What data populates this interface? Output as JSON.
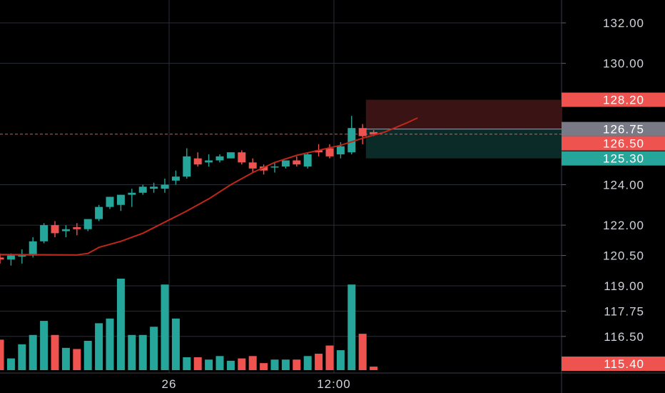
{
  "chart_data": {
    "type": "candlestick",
    "title": "",
    "xlabel": "",
    "ylabel": "",
    "ylim": [
      114.7,
      133.0
    ],
    "grid": true,
    "colors": {
      "background": "#000000",
      "up": "#26a69a",
      "down": "#ef5350",
      "moving_average": "#c0261a",
      "grid": "#2a2e39",
      "axis_text": "#d1d4dc",
      "current_price_badge": "#787b86",
      "stop_zone": "#3a1414",
      "target_zone": "#0b2b28"
    },
    "price_ticks": [
      "132.00",
      "130.00",
      "124.00",
      "122.00",
      "120.50",
      "119.00",
      "117.75",
      "116.50"
    ],
    "time_ticks": [
      {
        "label": "26",
        "index": 15
      },
      {
        "label": "12:00",
        "index": 30
      }
    ],
    "candles": [
      {
        "o": 120.4,
        "h": 120.6,
        "l": 120.1,
        "c": 120.3
      },
      {
        "o": 120.3,
        "h": 120.6,
        "l": 120.0,
        "c": 120.5
      },
      {
        "o": 120.5,
        "h": 120.8,
        "l": 120.1,
        "c": 120.5
      },
      {
        "o": 120.5,
        "h": 121.4,
        "l": 120.4,
        "c": 121.2
      },
      {
        "o": 121.2,
        "h": 122.1,
        "l": 121.1,
        "c": 122.0
      },
      {
        "o": 122.0,
        "h": 122.2,
        "l": 121.4,
        "c": 121.6
      },
      {
        "o": 121.7,
        "h": 122.0,
        "l": 121.4,
        "c": 121.8
      },
      {
        "o": 121.9,
        "h": 122.1,
        "l": 121.5,
        "c": 121.8
      },
      {
        "o": 121.8,
        "h": 122.3,
        "l": 121.7,
        "c": 122.3
      },
      {
        "o": 122.3,
        "h": 123.0,
        "l": 122.2,
        "c": 122.9
      },
      {
        "o": 122.9,
        "h": 123.4,
        "l": 122.8,
        "c": 123.4
      },
      {
        "o": 123.0,
        "h": 123.5,
        "l": 122.7,
        "c": 123.5
      },
      {
        "o": 123.5,
        "h": 123.8,
        "l": 122.9,
        "c": 123.6
      },
      {
        "o": 123.6,
        "h": 124.0,
        "l": 123.5,
        "c": 123.9
      },
      {
        "o": 123.8,
        "h": 124.1,
        "l": 123.6,
        "c": 123.9
      },
      {
        "o": 123.8,
        "h": 124.3,
        "l": 123.6,
        "c": 124.0
      },
      {
        "o": 124.2,
        "h": 124.7,
        "l": 124.0,
        "c": 124.4
      },
      {
        "o": 124.4,
        "h": 125.8,
        "l": 124.3,
        "c": 125.4
      },
      {
        "o": 125.3,
        "h": 125.6,
        "l": 124.9,
        "c": 125.0
      },
      {
        "o": 125.1,
        "h": 125.5,
        "l": 124.9,
        "c": 125.2
      },
      {
        "o": 125.2,
        "h": 125.5,
        "l": 125.1,
        "c": 125.4
      },
      {
        "o": 125.3,
        "h": 125.6,
        "l": 125.3,
        "c": 125.6
      },
      {
        "o": 125.6,
        "h": 125.7,
        "l": 125.0,
        "c": 125.1
      },
      {
        "o": 125.1,
        "h": 125.3,
        "l": 124.6,
        "c": 124.8
      },
      {
        "o": 124.9,
        "h": 125.0,
        "l": 124.5,
        "c": 124.7
      },
      {
        "o": 124.9,
        "h": 125.1,
        "l": 124.6,
        "c": 124.9
      },
      {
        "o": 124.9,
        "h": 125.2,
        "l": 124.8,
        "c": 125.2
      },
      {
        "o": 125.2,
        "h": 125.4,
        "l": 124.9,
        "c": 125.0
      },
      {
        "o": 124.9,
        "h": 125.6,
        "l": 124.8,
        "c": 125.5
      },
      {
        "o": 125.7,
        "h": 126.0,
        "l": 125.4,
        "c": 125.6
      },
      {
        "o": 125.8,
        "h": 126.0,
        "l": 125.3,
        "c": 125.4
      },
      {
        "o": 125.5,
        "h": 126.1,
        "l": 125.3,
        "c": 125.9
      },
      {
        "o": 125.6,
        "h": 127.4,
        "l": 125.5,
        "c": 126.8
      },
      {
        "o": 126.8,
        "h": 127.0,
        "l": 126.0,
        "c": 126.4
      },
      {
        "o": 126.6,
        "h": 126.7,
        "l": 126.4,
        "c": 126.5
      }
    ],
    "volume": [
      0.26,
      0.1,
      0.22,
      0.3,
      0.42,
      0.3,
      0.19,
      0.18,
      0.25,
      0.4,
      0.44,
      0.78,
      0.3,
      0.3,
      0.37,
      0.73,
      0.44,
      0.11,
      0.11,
      0.09,
      0.12,
      0.08,
      0.1,
      0.12,
      0.06,
      0.09,
      0.09,
      0.09,
      0.12,
      0.14,
      0.21,
      0.17,
      0.73,
      0.31,
      0.03
    ],
    "moving_average": [
      {
        "i": -1,
        "v": 120.55
      },
      {
        "i": 3,
        "v": 120.54
      },
      {
        "i": 7,
        "v": 120.53
      },
      {
        "i": 8,
        "v": 120.6
      },
      {
        "i": 9,
        "v": 120.9
      },
      {
        "i": 11,
        "v": 121.2
      },
      {
        "i": 13,
        "v": 121.6
      },
      {
        "i": 15,
        "v": 122.15
      },
      {
        "i": 17,
        "v": 122.7
      },
      {
        "i": 19,
        "v": 123.3
      },
      {
        "i": 21,
        "v": 124.0
      },
      {
        "i": 23,
        "v": 124.6
      },
      {
        "i": 25,
        "v": 125.1
      },
      {
        "i": 27,
        "v": 125.45
      },
      {
        "i": 29,
        "v": 125.7
      },
      {
        "i": 31,
        "v": 125.95
      },
      {
        "i": 33,
        "v": 126.3
      },
      {
        "i": 35,
        "v": 126.6
      },
      {
        "i": 37,
        "v": 127.05
      },
      {
        "i": 38,
        "v": 127.3
      }
    ],
    "position": {
      "from_index": 33.3,
      "to_index": 50,
      "stop": 128.2,
      "entry": 126.75,
      "target": 125.3
    },
    "price_labels": [
      {
        "label": "128.20",
        "price": 128.2,
        "kind": "stop"
      },
      {
        "label": "126.75",
        "price": 126.75,
        "kind": "current"
      },
      {
        "label": "126.50",
        "price": 126.5,
        "kind": "last"
      },
      {
        "label": "125.30",
        "price": 125.3,
        "kind": "target"
      },
      {
        "label": "115.40",
        "price": 115.4,
        "kind": "volume"
      }
    ]
  }
}
